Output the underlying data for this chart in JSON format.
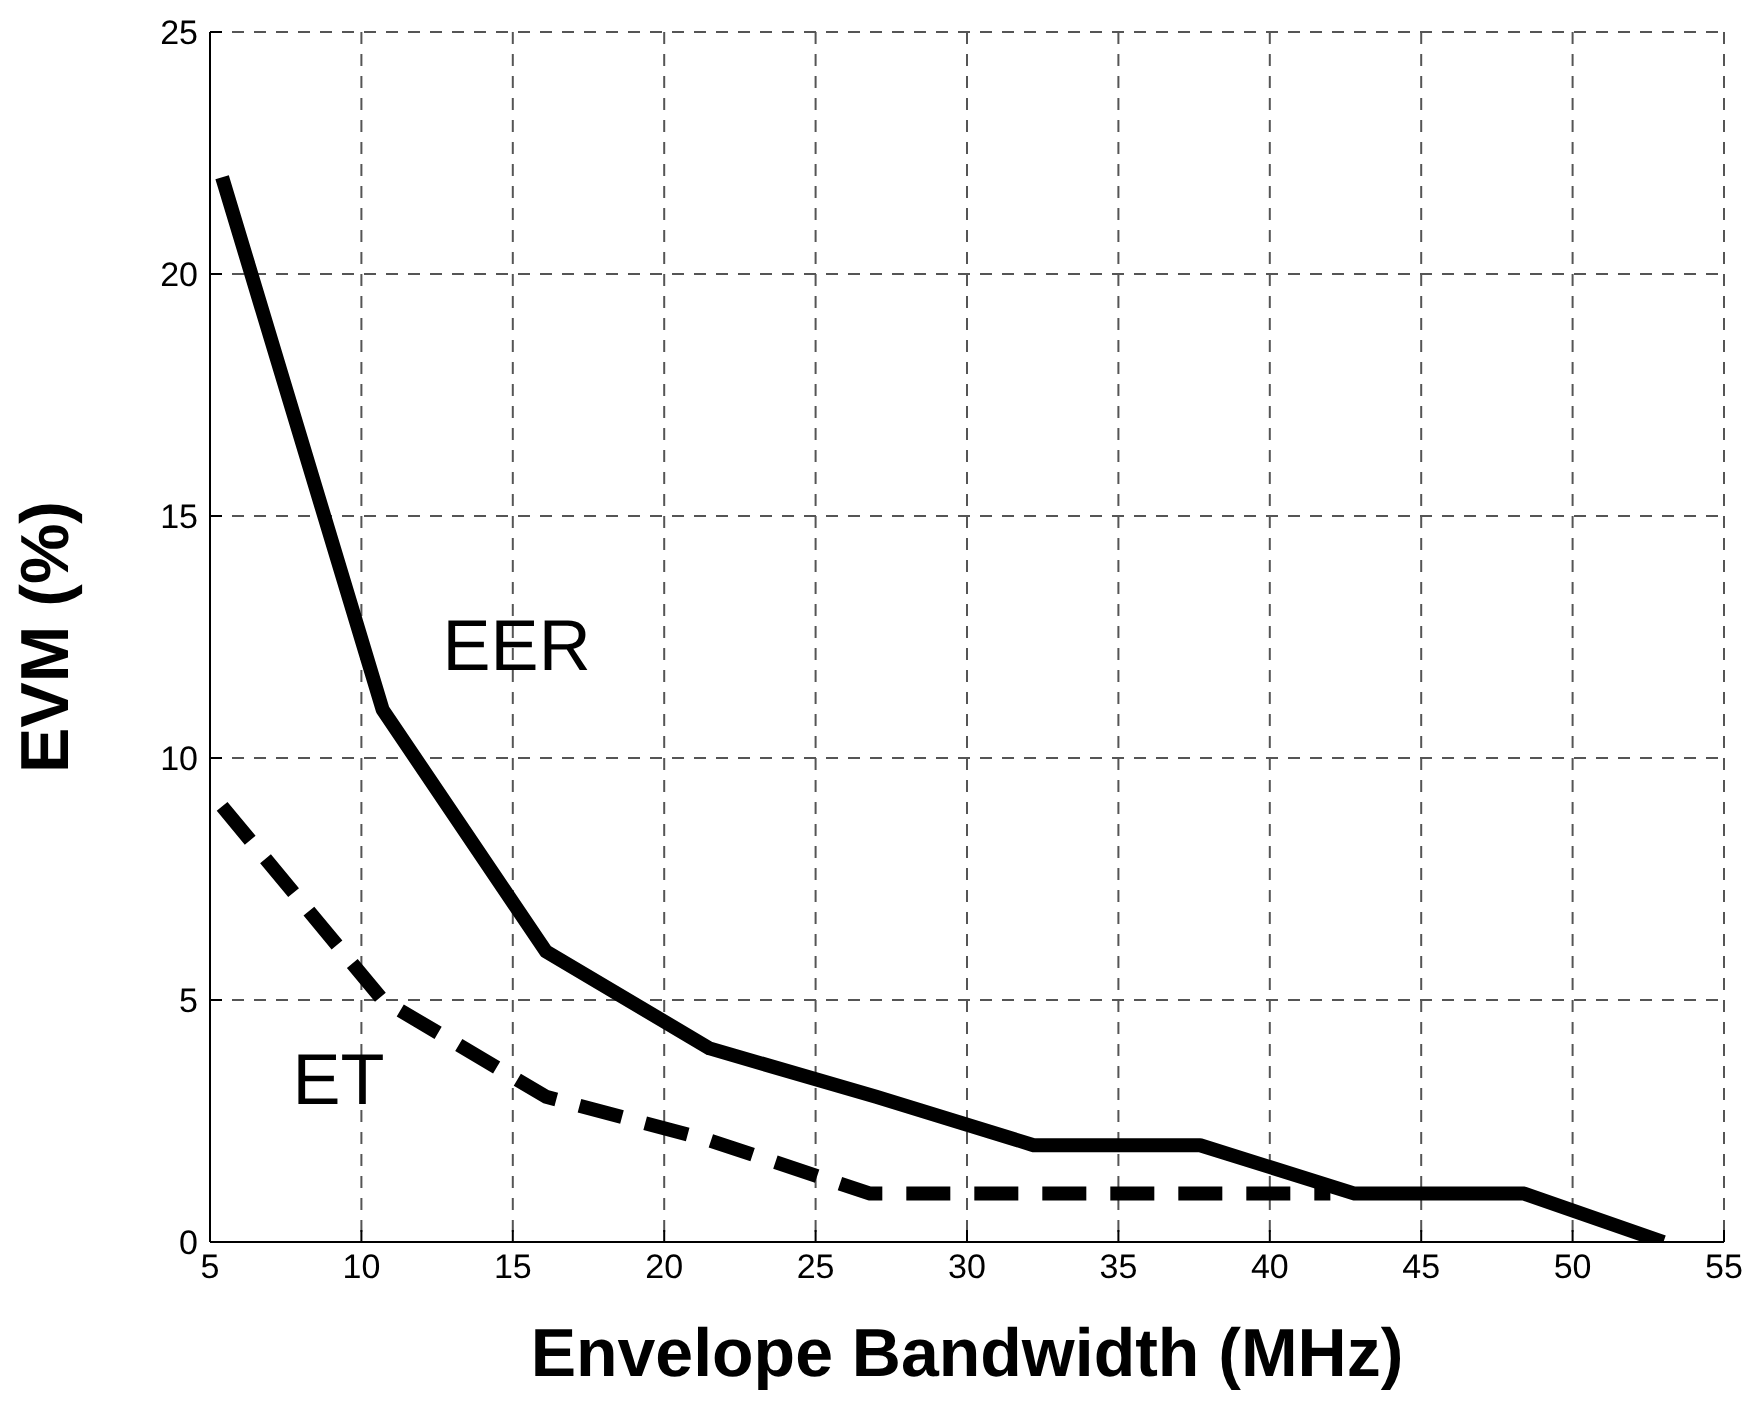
{
  "chart_data": {
    "type": "line",
    "xlabel": "Envelope Bandwidth (MHz)",
    "ylabel": "EVM (%)",
    "xlim": [
      5,
      55
    ],
    "xticks": [
      5,
      10,
      15,
      20,
      25,
      30,
      35,
      40,
      45,
      50,
      55
    ],
    "ylim": [
      0,
      25
    ],
    "yticks": [
      0,
      5,
      10,
      15,
      20,
      25
    ],
    "grid": true,
    "series": [
      {
        "name": "EER",
        "color": "#000000",
        "line_style": "solid",
        "x": [
          5.4,
          10.7,
          16.1,
          21.5,
          27,
          32.2,
          37.7,
          42.8,
          48.4,
          53
        ],
        "values": [
          22,
          11,
          6,
          4,
          3,
          2,
          2,
          1,
          1,
          0
        ]
      },
      {
        "name": "ET",
        "color": "#000000",
        "line_style": "dashed",
        "x": [
          5.4,
          10.7,
          16.1,
          21.5,
          26.8,
          42
        ],
        "values": [
          9,
          5,
          3,
          2.1,
          1,
          1
        ]
      }
    ]
  }
}
